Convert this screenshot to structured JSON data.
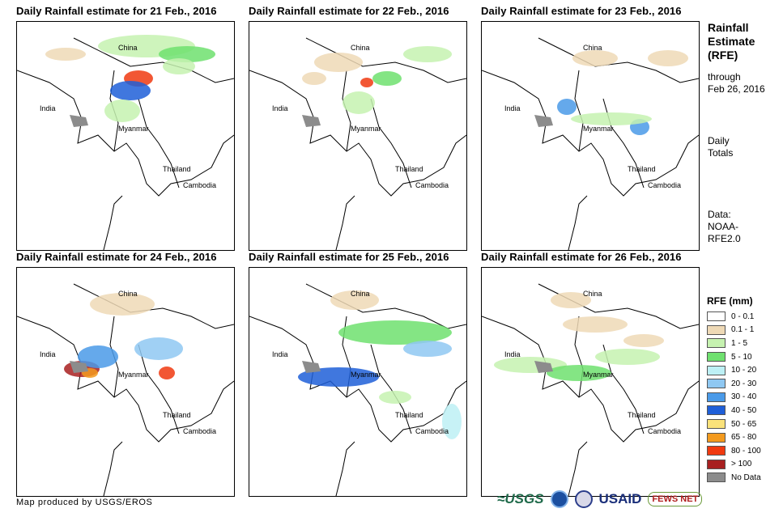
{
  "panels": [
    {
      "title": "Daily Rainfall estimate for 21 Feb., 2016",
      "labels": {
        "china": "China",
        "india": "India",
        "myanmar": "Myanmar",
        "thailand": "Thailand",
        "cambodia": "Cambodia"
      }
    },
    {
      "title": "Daily Rainfall estimate for 22 Feb., 2016",
      "labels": {
        "china": "China",
        "india": "India",
        "myanmar": "Myanmar",
        "thailand": "Thailand",
        "cambodia": "Cambodia"
      }
    },
    {
      "title": "Daily Rainfall estimate for 23 Feb., 2016",
      "labels": {
        "china": "China",
        "india": "India",
        "myanmar": "Myanmar",
        "thailand": "Thailand",
        "cambodia": "Cambodia"
      }
    },
    {
      "title": "Daily Rainfall estimate for 24 Feb., 2016",
      "labels": {
        "china": "China",
        "india": "India",
        "myanmar": "Myanmar",
        "thailand": "Thailand",
        "cambodia": "Cambodia"
      }
    },
    {
      "title": "Daily Rainfall estimate for 25 Feb., 2016",
      "labels": {
        "china": "China",
        "india": "India",
        "myanmar": "Myanmar",
        "thailand": "Thailand",
        "cambodia": "Cambodia"
      }
    },
    {
      "title": "Daily Rainfall estimate for 26 Feb., 2016",
      "labels": {
        "china": "China",
        "india": "India",
        "myanmar": "Myanmar",
        "thailand": "Thailand",
        "cambodia": "Cambodia"
      }
    }
  ],
  "sidebar": {
    "title_line1": "Rainfall",
    "title_line2": "Estimate",
    "title_line3": "(RFE)",
    "through": "through",
    "date": "Feb 26, 2016",
    "totals_line1": "Daily",
    "totals_line2": "Totals",
    "data_line1": "Data:",
    "data_line2": "NOAA-",
    "data_line3": "RFE2.0"
  },
  "legend": {
    "title": "RFE (mm)",
    "items": [
      {
        "label": "0 - 0.1",
        "color": "#ffffff"
      },
      {
        "label": "0.1 - 1",
        "color": "#eed9b6"
      },
      {
        "label": "1 - 5",
        "color": "#c6f2b0"
      },
      {
        "label": "5 - 10",
        "color": "#6fe06f"
      },
      {
        "label": "10 - 20",
        "color": "#bdf0f5"
      },
      {
        "label": "20 - 30",
        "color": "#8fc8f2"
      },
      {
        "label": "30 - 40",
        "color": "#4a9ae8"
      },
      {
        "label": "40 - 50",
        "color": "#1f5fd8"
      },
      {
        "label": "50 - 65",
        "color": "#fae27a"
      },
      {
        "label": "65 - 80",
        "color": "#f39a1e"
      },
      {
        "label": "80 - 100",
        "color": "#f03a10"
      },
      {
        "label": "> 100",
        "color": "#a82020"
      },
      {
        "label": "No Data",
        "color": "#8c8c8c"
      }
    ]
  },
  "footer": {
    "credit": "Map produced by USGS/EROS",
    "logo_usgs": "≈USGS",
    "logo_usaid": "USAID",
    "logo_fews": "FEWS NET"
  }
}
